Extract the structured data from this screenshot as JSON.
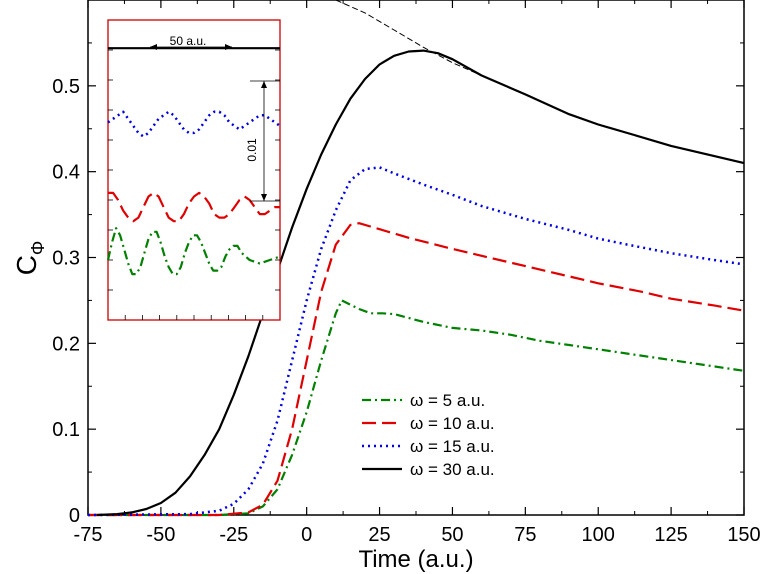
{
  "chart_data": [
    {
      "type": "line",
      "xlabel": "Time (a.u.)",
      "ylabel_main": "C",
      "ylabel_sub": "Φ",
      "xlim": [
        -75,
        150
      ],
      "ylim": [
        0,
        0.6
      ],
      "xticks": [
        -75,
        -50,
        -25,
        0,
        25,
        50,
        75,
        100,
        125,
        150
      ],
      "xtick_labels": [
        "-75",
        "-50",
        "-25",
        "0",
        "25",
        "50",
        "75",
        "100",
        "125",
        "150"
      ],
      "yticks": [
        0,
        0.1,
        0.2,
        0.3,
        0.4,
        0.5
      ],
      "ytick_labels": [
        "0",
        "0.1",
        "0.2",
        "0.3",
        "0.4",
        "0.5"
      ],
      "legend_position": "lower-right",
      "series": [
        {
          "name": "ω = 5 a.u.",
          "color": "#008000",
          "style": "dash-dot",
          "points": [
            [
              -75,
              0
            ],
            [
              -30,
              0
            ],
            [
              -20,
              0.002
            ],
            [
              -15,
              0.01
            ],
            [
              -10,
              0.03
            ],
            [
              -5,
              0.07
            ],
            [
              0,
              0.12
            ],
            [
              5,
              0.18
            ],
            [
              10,
              0.235
            ],
            [
              12,
              0.25
            ],
            [
              15,
              0.245
            ],
            [
              18,
              0.24
            ],
            [
              22,
              0.235
            ],
            [
              26,
              0.235
            ],
            [
              30,
              0.234
            ],
            [
              40,
              0.225
            ],
            [
              50,
              0.218
            ],
            [
              60,
              0.215
            ],
            [
              70,
              0.21
            ],
            [
              80,
              0.203
            ],
            [
              90,
              0.198
            ],
            [
              100,
              0.193
            ],
            [
              110,
              0.188
            ],
            [
              120,
              0.183
            ],
            [
              130,
              0.178
            ],
            [
              140,
              0.173
            ],
            [
              150,
              0.168
            ]
          ]
        },
        {
          "name": "ω = 10 a.u.",
          "color": "#e00000",
          "style": "long-dash",
          "points": [
            [
              -75,
              0
            ],
            [
              -30,
              0
            ],
            [
              -20,
              0.003
            ],
            [
              -15,
              0.012
            ],
            [
              -10,
              0.04
            ],
            [
              -5,
              0.1
            ],
            [
              0,
              0.18
            ],
            [
              5,
              0.26
            ],
            [
              10,
              0.315
            ],
            [
              15,
              0.338
            ],
            [
              18,
              0.34
            ],
            [
              25,
              0.333
            ],
            [
              35,
              0.323
            ],
            [
              50,
              0.31
            ],
            [
              60,
              0.302
            ],
            [
              75,
              0.29
            ],
            [
              90,
              0.278
            ],
            [
              100,
              0.27
            ],
            [
              115,
              0.26
            ],
            [
              125,
              0.252
            ],
            [
              140,
              0.244
            ],
            [
              150,
              0.238
            ]
          ]
        },
        {
          "name": "ω = 15 a.u.",
          "color": "#0000e0",
          "style": "dotted",
          "points": [
            [
              -75,
              0
            ],
            [
              -40,
              0.001
            ],
            [
              -30,
              0.005
            ],
            [
              -25,
              0.013
            ],
            [
              -20,
              0.03
            ],
            [
              -15,
              0.06
            ],
            [
              -10,
              0.11
            ],
            [
              -5,
              0.18
            ],
            [
              0,
              0.25
            ],
            [
              5,
              0.31
            ],
            [
              10,
              0.355
            ],
            [
              15,
              0.39
            ],
            [
              20,
              0.403
            ],
            [
              25,
              0.405
            ],
            [
              30,
              0.398
            ],
            [
              40,
              0.385
            ],
            [
              50,
              0.373
            ],
            [
              60,
              0.36
            ],
            [
              75,
              0.345
            ],
            [
              90,
              0.332
            ],
            [
              100,
              0.322
            ],
            [
              110,
              0.315
            ],
            [
              125,
              0.305
            ],
            [
              140,
              0.297
            ],
            [
              150,
              0.292
            ]
          ]
        },
        {
          "name": "ω = 30 a.u.",
          "color": "#000000",
          "style": "solid",
          "points": [
            [
              -72,
              0
            ],
            [
              -65,
              0.001
            ],
            [
              -60,
              0.003
            ],
            [
              -55,
              0.007
            ],
            [
              -50,
              0.014
            ],
            [
              -45,
              0.026
            ],
            [
              -40,
              0.045
            ],
            [
              -35,
              0.07
            ],
            [
              -30,
              0.1
            ],
            [
              -25,
              0.14
            ],
            [
              -20,
              0.185
            ],
            [
              -15,
              0.235
            ],
            [
              -10,
              0.285
            ],
            [
              -5,
              0.335
            ],
            [
              0,
              0.38
            ],
            [
              5,
              0.42
            ],
            [
              10,
              0.455
            ],
            [
              15,
              0.485
            ],
            [
              20,
              0.508
            ],
            [
              25,
              0.525
            ],
            [
              30,
              0.535
            ],
            [
              35,
              0.54
            ],
            [
              40,
              0.541
            ],
            [
              45,
              0.538
            ],
            [
              50,
              0.531
            ],
            [
              60,
              0.512
            ],
            [
              75,
              0.49
            ],
            [
              90,
              0.467
            ],
            [
              100,
              0.455
            ],
            [
              110,
              0.445
            ],
            [
              125,
              0.43
            ],
            [
              140,
              0.418
            ],
            [
              150,
              0.41
            ]
          ]
        },
        {
          "name": "",
          "color": "#000000",
          "style": "thin-dash",
          "points": [
            [
              10,
              0.6
            ],
            [
              20,
              0.585
            ],
            [
              30,
              0.565
            ],
            [
              40,
              0.545
            ],
            [
              50,
              0.527
            ],
            [
              60,
              0.512
            ],
            [
              75,
              0.49
            ],
            [
              90,
              0.467
            ],
            [
              100,
              0.455
            ],
            [
              110,
              0.445
            ],
            [
              125,
              0.43
            ],
            [
              140,
              0.418
            ],
            [
              150,
              0.41
            ]
          ]
        }
      ]
    },
    {
      "type": "line",
      "role": "inset",
      "scale_bar_x_label": "50 a.u.",
      "scale_bar_y_label": "0.01",
      "series": [
        {
          "color": "#000000",
          "style": "solid",
          "points": [
            [
              0,
              0.117
            ],
            [
              170,
              0.117
            ]
          ]
        },
        {
          "color": "#0000e0",
          "style": "dotted",
          "points": [
            [
              0,
              0.096
            ],
            [
              5,
              0.097
            ],
            [
              10,
              0.098
            ],
            [
              15,
              0.099
            ],
            [
              20,
              0.097
            ],
            [
              25,
              0.095
            ],
            [
              30,
              0.093
            ],
            [
              35,
              0.092
            ],
            [
              40,
              0.093
            ],
            [
              45,
              0.095
            ],
            [
              50,
              0.097
            ],
            [
              55,
              0.098
            ],
            [
              60,
              0.099
            ],
            [
              65,
              0.098
            ],
            [
              70,
              0.096
            ],
            [
              75,
              0.094
            ],
            [
              80,
              0.093
            ],
            [
              85,
              0.093
            ],
            [
              90,
              0.094
            ],
            [
              95,
              0.096
            ],
            [
              100,
              0.098
            ],
            [
              105,
              0.099
            ],
            [
              110,
              0.099
            ],
            [
              115,
              0.098
            ],
            [
              120,
              0.096
            ],
            [
              125,
              0.095
            ],
            [
              130,
              0.094
            ],
            [
              135,
              0.095
            ],
            [
              140,
              0.096
            ],
            [
              145,
              0.097
            ],
            [
              150,
              0.098
            ],
            [
              155,
              0.098
            ],
            [
              160,
              0.097
            ],
            [
              165,
              0.096
            ],
            [
              170,
              0.095
            ]
          ]
        },
        {
          "color": "#e00000",
          "style": "long-dash",
          "points": [
            [
              0,
              0.076
            ],
            [
              5,
              0.076
            ],
            [
              10,
              0.074
            ],
            [
              15,
              0.071
            ],
            [
              20,
              0.069
            ],
            [
              25,
              0.068
            ],
            [
              30,
              0.069
            ],
            [
              35,
              0.072
            ],
            [
              40,
              0.075
            ],
            [
              45,
              0.076
            ],
            [
              50,
              0.075
            ],
            [
              55,
              0.072
            ],
            [
              60,
              0.069
            ],
            [
              65,
              0.068
            ],
            [
              70,
              0.068
            ],
            [
              75,
              0.07
            ],
            [
              80,
              0.073
            ],
            [
              85,
              0.075
            ],
            [
              90,
              0.076
            ],
            [
              95,
              0.075
            ],
            [
              100,
              0.073
            ],
            [
              105,
              0.07
            ],
            [
              110,
              0.069
            ],
            [
              115,
              0.069
            ],
            [
              120,
              0.07
            ],
            [
              125,
              0.072
            ],
            [
              130,
              0.074
            ],
            [
              135,
              0.075
            ],
            [
              140,
              0.074
            ],
            [
              145,
              0.072
            ],
            [
              150,
              0.07
            ],
            [
              155,
              0.07
            ],
            [
              160,
              0.071
            ],
            [
              165,
              0.072
            ],
            [
              170,
              0.072
            ]
          ]
        },
        {
          "color": "#008000",
          "style": "dash-dot",
          "points": [
            [
              0,
              0.057
            ],
            [
              4,
              0.062
            ],
            [
              8,
              0.066
            ],
            [
              12,
              0.064
            ],
            [
              16,
              0.06
            ],
            [
              20,
              0.056
            ],
            [
              24,
              0.053
            ],
            [
              28,
              0.053
            ],
            [
              32,
              0.055
            ],
            [
              36,
              0.059
            ],
            [
              40,
              0.063
            ],
            [
              44,
              0.065
            ],
            [
              48,
              0.065
            ],
            [
              52,
              0.062
            ],
            [
              56,
              0.058
            ],
            [
              60,
              0.055
            ],
            [
              64,
              0.053
            ],
            [
              68,
              0.053
            ],
            [
              72,
              0.055
            ],
            [
              76,
              0.059
            ],
            [
              80,
              0.062
            ],
            [
              84,
              0.064
            ],
            [
              88,
              0.064
            ],
            [
              92,
              0.062
            ],
            [
              96,
              0.059
            ],
            [
              100,
              0.056
            ],
            [
              104,
              0.054
            ],
            [
              108,
              0.054
            ],
            [
              112,
              0.055
            ],
            [
              116,
              0.058
            ],
            [
              120,
              0.06
            ],
            [
              124,
              0.061
            ],
            [
              128,
              0.061
            ],
            [
              132,
              0.059
            ],
            [
              136,
              0.058
            ],
            [
              140,
              0.057
            ],
            [
              150,
              0.056
            ],
            [
              160,
              0.057
            ],
            [
              170,
              0.058
            ]
          ]
        }
      ]
    }
  ]
}
